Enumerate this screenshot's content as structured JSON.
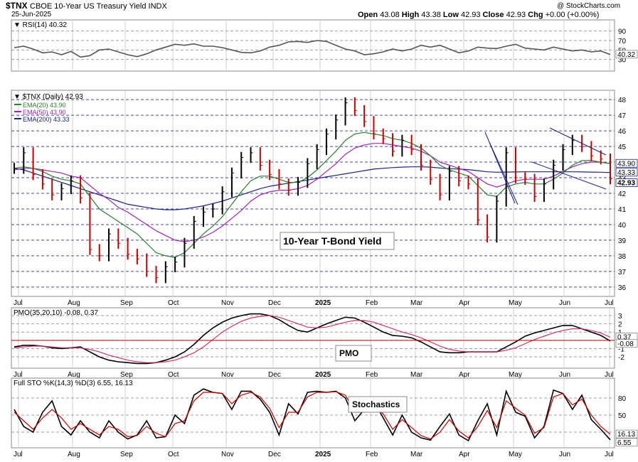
{
  "header": {
    "symbol": "$TNX",
    "name": "CBOE 10-Year US Treasury Yield INDX",
    "date": "25-Jun-2025",
    "open_label": "Open",
    "open": "43.08",
    "high_label": "High",
    "high": "43.38",
    "low_label": "Low",
    "low": "42.93",
    "close_label": "Close",
    "close": "42.93",
    "chg_label": "Chg",
    "chg": "+0.00 (+0.00%)",
    "watermark": "@ StockCharts.com"
  },
  "colors": {
    "up": "#000000",
    "down": "#cc0000",
    "ema20": "#2e7d32",
    "ema50": "#9c27b0",
    "ema200": "#1a237e",
    "grid": "#1a237e",
    "pmo_signal": "#cc3366",
    "sto_d": "#cc0000"
  },
  "chart_data": [
    {
      "type": "line",
      "panel": "rsi",
      "title": "RSI(14) 40.32",
      "y_ticks": [
        "30",
        "50",
        "70",
        "90"
      ],
      "ylim": [
        10,
        100
      ],
      "series": [
        {
          "name": "RSI(14)",
          "values": [
            55,
            58,
            52,
            44,
            46,
            40,
            47,
            35,
            38,
            50,
            52,
            46,
            40,
            36,
            42,
            50,
            56,
            62,
            60,
            63,
            58,
            58,
            55,
            50,
            45,
            44,
            48,
            56,
            60,
            67,
            68,
            66,
            70,
            68,
            60,
            52,
            48,
            40,
            42,
            46,
            52,
            48,
            52,
            60,
            56,
            60,
            52,
            44,
            48,
            56,
            54,
            53,
            58,
            62,
            54,
            52,
            50,
            56,
            52,
            48,
            50,
            46,
            48,
            40.32
          ]
        }
      ],
      "right_label": "40.32"
    },
    {
      "type": "line",
      "panel": "price",
      "title": "$TNX (Daily) 42.93",
      "legend": [
        {
          "name": "EMA(20)",
          "value": "43.90"
        },
        {
          "name": "EMA(50)",
          "value": "43.90"
        },
        {
          "name": "EMA(200)",
          "value": "43.33"
        }
      ],
      "annotation": "10-Year T-Bond Yield",
      "x_labels": [
        "Jul",
        "Aug",
        "Sep",
        "Oct",
        "Nov",
        "Dec",
        "2025",
        "Feb",
        "Mar",
        "Apr",
        "May",
        "Jun",
        "Jul"
      ],
      "y_ticks": [
        "36",
        "37",
        "38",
        "39",
        "40",
        "41",
        "42",
        "43",
        "44",
        "45",
        "46",
        "47",
        "48"
      ],
      "ylim": [
        35.4,
        48.6
      ],
      "right_labels": [
        "43.90",
        "43.33",
        "42.93"
      ],
      "close": [
        43.6,
        44.6,
        43.2,
        42.6,
        41.9,
        42.3,
        42.8,
        41.7,
        38.4,
        38.0,
        39.4,
        38.8,
        38.1,
        37.8,
        37.0,
        36.6,
        37.3,
        37.6,
        38.8,
        40.2,
        40.8,
        41.0,
        42.1,
        43.3,
        44.3,
        44.6,
        43.8,
        43.2,
        42.6,
        42.2,
        42.7,
        43.9,
        44.8,
        45.8,
        46.7,
        47.8,
        47.3,
        46.6,
        45.8,
        45.5,
        44.7,
        45.4,
        44.8,
        43.8,
        42.9,
        41.9,
        43.4,
        42.8,
        42.6,
        40.3,
        39.2,
        41.5,
        44.6,
        43.0,
        42.9,
        41.8,
        42.6,
        43.8,
        44.8,
        45.4,
        45.0,
        44.4,
        44.2,
        42.93
      ],
      "ema20": [
        43.6,
        43.7,
        43.6,
        43.4,
        43.1,
        42.9,
        42.8,
        42.6,
        41.8,
        41.0,
        40.6,
        40.2,
        39.8,
        39.4,
        38.8,
        38.2,
        38.0,
        37.9,
        38.2,
        38.8,
        39.4,
        39.9,
        40.5,
        41.3,
        42.1,
        42.8,
        43.1,
        43.1,
        42.9,
        42.7,
        42.7,
        43.0,
        43.5,
        44.1,
        44.7,
        45.4,
        45.8,
        45.9,
        45.8,
        45.7,
        45.5,
        45.4,
        45.2,
        44.9,
        44.4,
        43.8,
        43.5,
        43.3,
        43.1,
        42.5,
        41.9,
        41.8,
        42.4,
        42.6,
        42.7,
        42.6,
        42.6,
        42.9,
        43.3,
        43.8,
        44.1,
        44.1,
        44.0,
        43.9
      ],
      "ema50": [
        43.5,
        43.6,
        43.6,
        43.5,
        43.4,
        43.3,
        43.1,
        43.0,
        42.5,
        42.0,
        41.6,
        41.1,
        40.8,
        40.4,
        40.0,
        39.6,
        39.3,
        39.0,
        38.9,
        39.0,
        39.2,
        39.5,
        39.9,
        40.4,
        40.9,
        41.5,
        41.9,
        42.1,
        42.2,
        42.2,
        42.3,
        42.5,
        42.9,
        43.4,
        43.9,
        44.5,
        44.9,
        45.1,
        45.2,
        45.2,
        45.1,
        45.0,
        44.9,
        44.7,
        44.4,
        44.0,
        43.8,
        43.6,
        43.4,
        43.0,
        42.6,
        42.4,
        42.6,
        42.8,
        42.9,
        42.9,
        42.9,
        43.1,
        43.4,
        43.7,
        43.9,
        44.0,
        44.0,
        43.9
      ],
      "ema200": [
        43.6,
        43.5,
        43.3,
        43.1,
        42.9,
        42.7,
        42.5,
        42.3,
        42.1,
        41.9,
        41.7,
        41.5,
        41.3,
        41.2,
        41.1,
        41.0,
        40.95,
        40.95,
        41.0,
        41.1,
        41.2,
        41.35,
        41.5,
        41.7,
        41.9,
        42.1,
        42.3,
        42.45,
        42.55,
        42.65,
        42.75,
        42.85,
        42.95,
        43.05,
        43.15,
        43.25,
        43.35,
        43.45,
        43.55,
        43.6,
        43.65,
        43.68,
        43.7,
        43.7,
        43.68,
        43.62,
        43.58,
        43.55,
        43.52,
        43.45,
        43.38,
        43.35,
        43.36,
        43.37,
        43.38,
        43.38,
        43.38,
        43.38,
        43.38,
        43.38,
        43.37,
        43.36,
        43.35,
        43.33
      ]
    },
    {
      "type": "line",
      "panel": "pmo",
      "title": "PMO(35,20,10) -0.08, 0.37",
      "annotation": "PMO",
      "x_labels": [
        "Jul",
        "Aug",
        "Sep",
        "Oct",
        "Nov",
        "Dec",
        "2025",
        "Feb",
        "Mar",
        "Apr",
        "May",
        "Jun",
        "Jul"
      ],
      "y_ticks": [
        "-2",
        "-1",
        "0",
        "1",
        "2",
        "3"
      ],
      "ylim": [
        -3.2,
        3.6
      ],
      "right_labels": [
        "0.37",
        "-0.08"
      ],
      "series": [
        {
          "name": "PMO",
          "values": [
            -0.8,
            -0.6,
            -0.6,
            -0.7,
            -0.9,
            -1.0,
            -0.9,
            -0.8,
            -1.4,
            -2.0,
            -2.4,
            -2.6,
            -2.7,
            -2.8,
            -2.8,
            -2.7,
            -2.4,
            -2.0,
            -1.4,
            -0.5,
            0.6,
            1.5,
            2.2,
            2.7,
            3.0,
            3.2,
            3.2,
            3.0,
            2.5,
            1.8,
            1.2,
            1.0,
            1.5,
            2.0,
            2.4,
            2.8,
            2.7,
            2.2,
            1.6,
            1.0,
            0.6,
            0.5,
            0.3,
            -0.2,
            -0.8,
            -1.4,
            -1.5,
            -1.5,
            -1.4,
            -1.4,
            -1.4,
            -1.4,
            -0.8,
            -0.2,
            0.5,
            0.9,
            1.2,
            1.5,
            1.8,
            1.8,
            1.4,
            1.0,
            0.6,
            -0.08
          ]
        },
        {
          "name": "Signal",
          "values": [
            -0.9,
            -0.8,
            -0.7,
            -0.7,
            -0.8,
            -0.9,
            -0.9,
            -0.9,
            -1.1,
            -1.4,
            -1.8,
            -2.1,
            -2.4,
            -2.6,
            -2.7,
            -2.7,
            -2.6,
            -2.4,
            -2.0,
            -1.5,
            -0.8,
            0.1,
            1.0,
            1.7,
            2.3,
            2.7,
            2.9,
            3.0,
            2.8,
            2.4,
            2.0,
            1.6,
            1.5,
            1.6,
            1.9,
            2.2,
            2.4,
            2.4,
            2.2,
            1.8,
            1.4,
            1.0,
            0.7,
            0.3,
            -0.2,
            -0.7,
            -1.1,
            -1.3,
            -1.4,
            -1.4,
            -1.4,
            -1.4,
            -1.2,
            -0.9,
            -0.4,
            0.1,
            0.5,
            0.9,
            1.2,
            1.4,
            1.4,
            1.2,
            0.9,
            0.37
          ]
        }
      ]
    },
    {
      "type": "line",
      "panel": "sto",
      "title": "Full STO %K(14,3) %D(3) 6.55, 16.13",
      "annotation": "Stochastics",
      "x_labels": [
        "Jul",
        "Aug",
        "Sep",
        "Oct",
        "Nov",
        "Dec",
        "2025",
        "Feb",
        "Mar",
        "Apr",
        "May",
        "Jun",
        "Jul"
      ],
      "y_ticks": [
        "20",
        "50",
        "80"
      ],
      "ylim": [
        -5,
        110
      ],
      "right_labels": [
        "16.13",
        "6.55"
      ],
      "series": [
        {
          "name": "%K",
          "values": [
            60,
            30,
            20,
            55,
            75,
            30,
            15,
            40,
            20,
            10,
            40,
            20,
            8,
            15,
            40,
            10,
            12,
            50,
            35,
            85,
            96,
            90,
            88,
            60,
            92,
            92,
            78,
            55,
            15,
            70,
            52,
            90,
            92,
            90,
            92,
            80,
            40,
            60,
            75,
            45,
            15,
            50,
            20,
            10,
            6,
            30,
            52,
            15,
            5,
            40,
            70,
            15,
            92,
            55,
            48,
            10,
            30,
            94,
            88,
            60,
            85,
            42,
            25,
            6.55
          ]
        },
        {
          "name": "%D",
          "values": [
            55,
            40,
            25,
            45,
            60,
            45,
            25,
            35,
            25,
            15,
            30,
            25,
            12,
            14,
            30,
            18,
            12,
            35,
            40,
            75,
            90,
            90,
            88,
            70,
            85,
            90,
            82,
            62,
            28,
            55,
            55,
            82,
            90,
            90,
            91,
            85,
            55,
            55,
            68,
            52,
            25,
            42,
            28,
            14,
            8,
            20,
            42,
            22,
            10,
            30,
            58,
            28,
            75,
            62,
            50,
            18,
            28,
            82,
            88,
            68,
            78,
            50,
            30,
            16.13
          ]
        }
      ]
    }
  ]
}
